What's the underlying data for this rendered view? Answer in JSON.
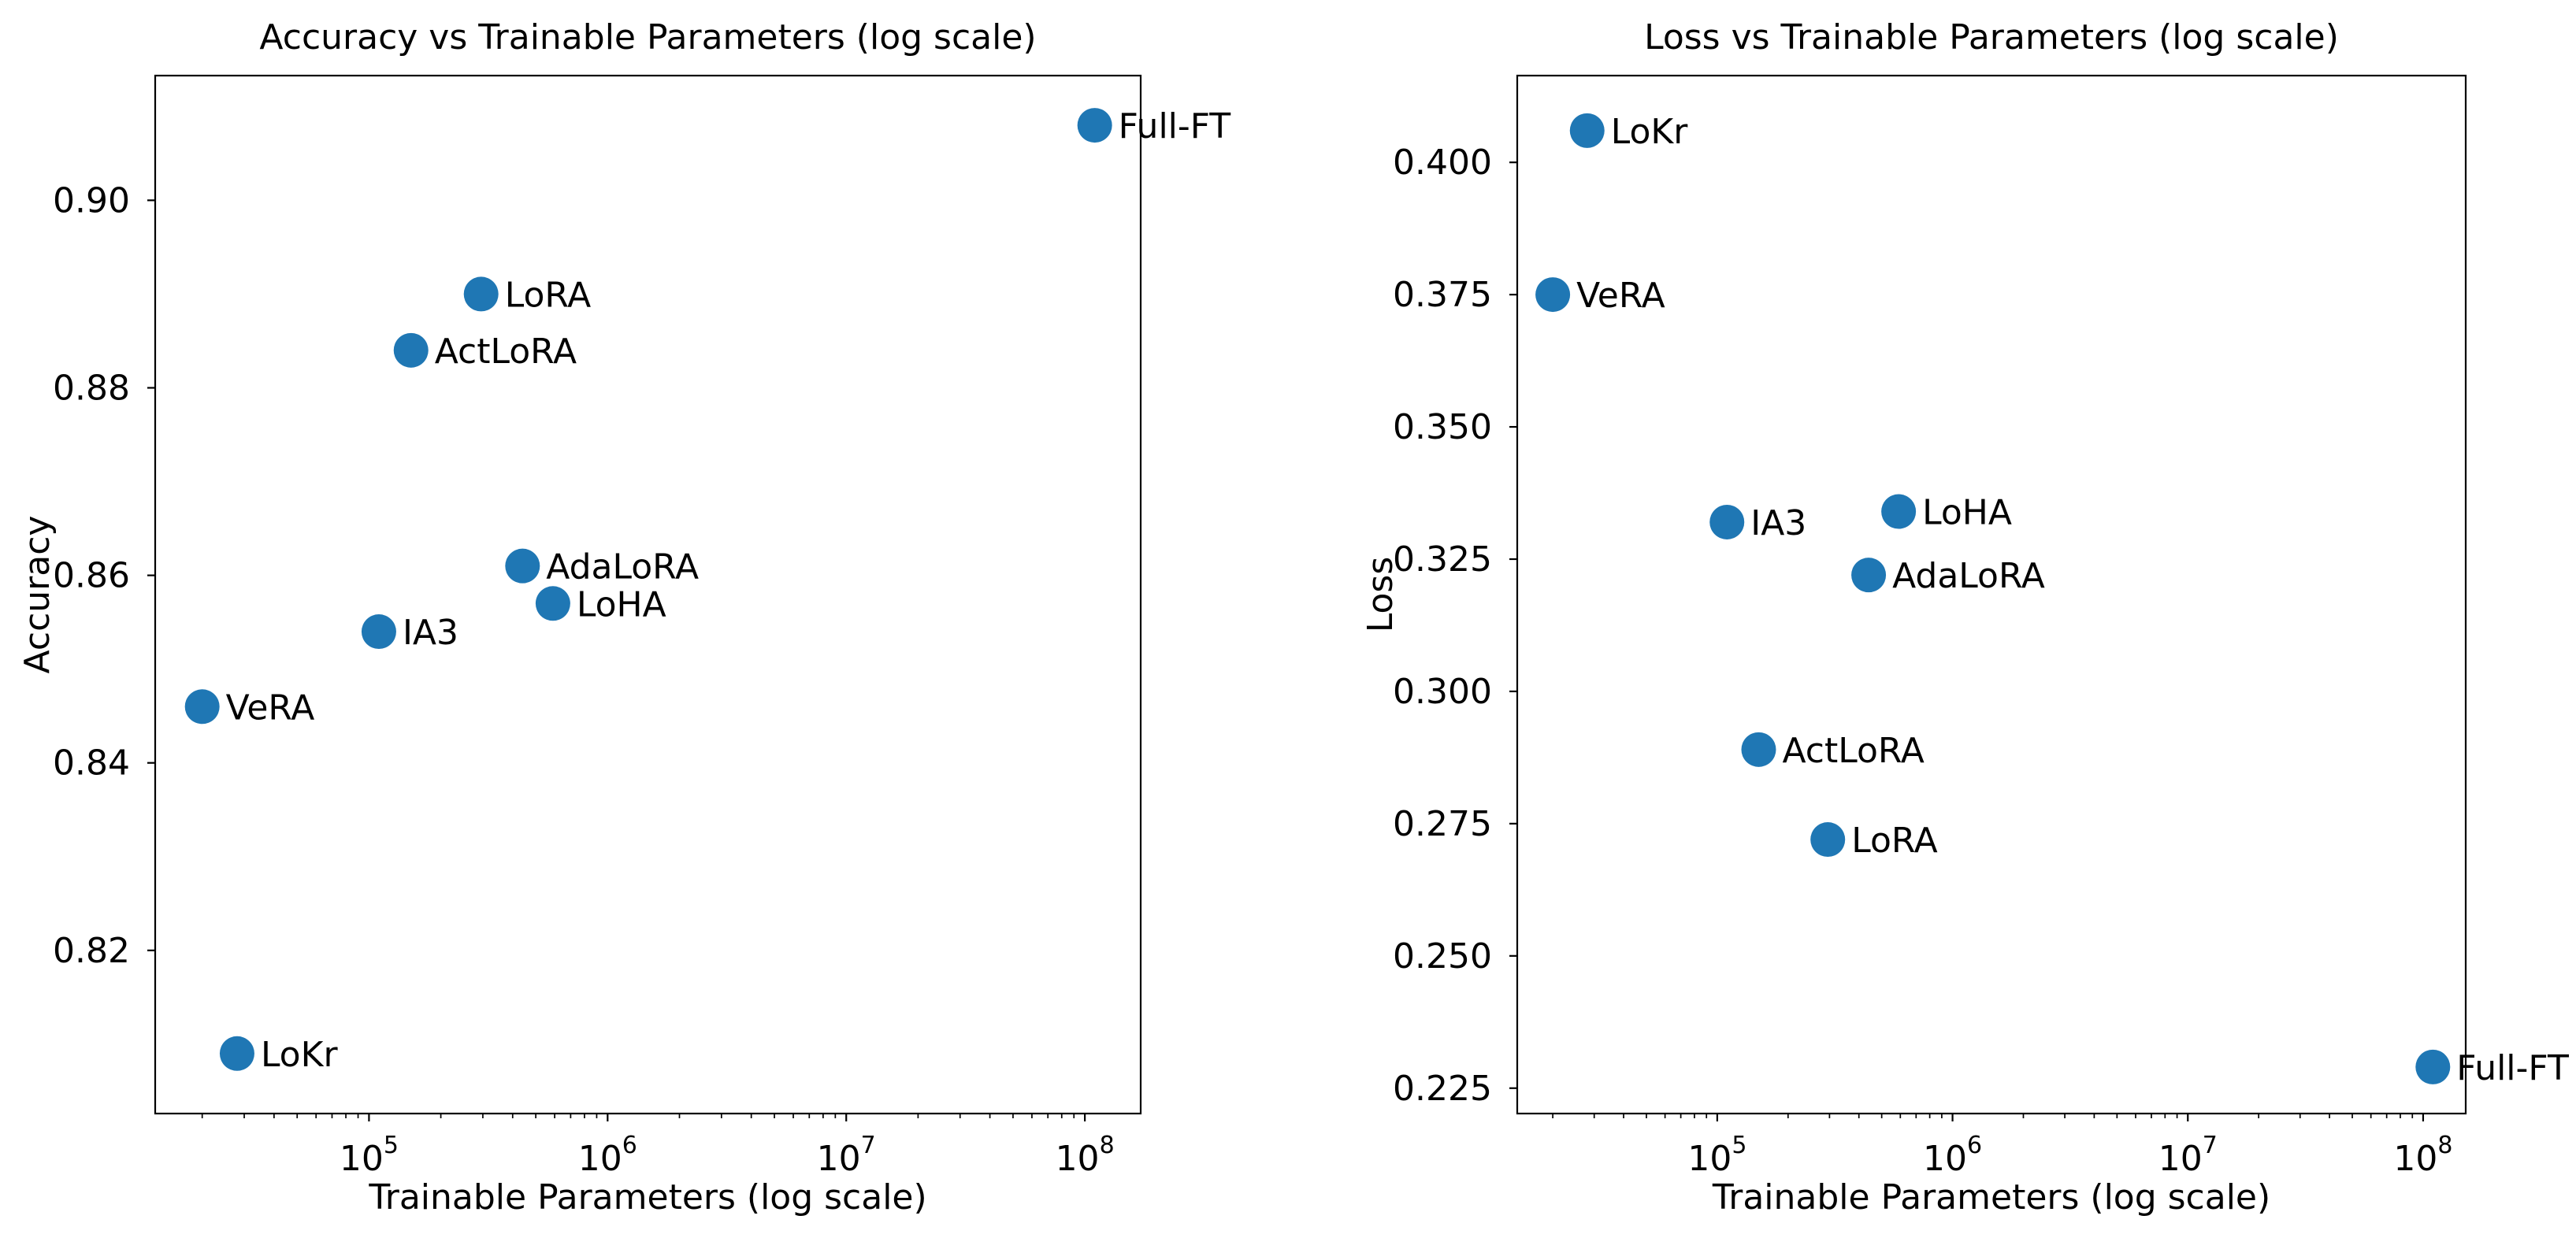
{
  "figure": {
    "background": "#ffffff",
    "text_color": "#000000",
    "marker_color": "#1f77b4"
  },
  "chart_data": [
    {
      "type": "scatter",
      "name": "accuracy-vs-params",
      "title": "Accuracy vs Trainable Parameters (log scale)",
      "xlabel": "Trainable Parameters (log scale)",
      "ylabel": "Accuracy",
      "x_scale": "log10",
      "grid": false,
      "legend": "none",
      "marker_color": "#1f77b4",
      "xlim_log10": [
        4.104,
        8.234
      ],
      "ylim": [
        0.8026,
        0.9133
      ],
      "xticks": [
        {
          "log10": 5,
          "base": "10",
          "exponent": "5"
        },
        {
          "log10": 6,
          "base": "10",
          "exponent": "6"
        },
        {
          "log10": 7,
          "base": "10",
          "exponent": "7"
        },
        {
          "log10": 8,
          "base": "10",
          "exponent": "8"
        }
      ],
      "yticks": [
        {
          "value": 0.82,
          "label": "0.82"
        },
        {
          "value": 0.84,
          "label": "0.84"
        },
        {
          "value": 0.86,
          "label": "0.86"
        },
        {
          "value": 0.88,
          "label": "0.88"
        },
        {
          "value": 0.9,
          "label": "0.90"
        }
      ],
      "points": [
        {
          "label": "Full-FT",
          "params": 110000000,
          "value": 0.908
        },
        {
          "label": "LoRA",
          "params": 295000,
          "value": 0.89
        },
        {
          "label": "ActLoRA",
          "params": 150000,
          "value": 0.884
        },
        {
          "label": "AdaLoRA",
          "params": 440000,
          "value": 0.861
        },
        {
          "label": "LoHA",
          "params": 590000,
          "value": 0.857
        },
        {
          "label": "IA3",
          "params": 110000,
          "value": 0.854
        },
        {
          "label": "VeRA",
          "params": 20000,
          "value": 0.846
        },
        {
          "label": "LoKr",
          "params": 28000,
          "value": 0.809
        }
      ]
    },
    {
      "type": "scatter",
      "name": "loss-vs-params",
      "title": "Loss vs Trainable Parameters (log scale)",
      "xlabel": "Trainable Parameters (log scale)",
      "ylabel": "Loss",
      "x_scale": "log10",
      "grid": false,
      "legend": "none",
      "marker_color": "#1f77b4",
      "xlim_log10": [
        4.15,
        8.181
      ],
      "ylim": [
        0.2202,
        0.4164
      ],
      "xticks": [
        {
          "log10": 5,
          "base": "10",
          "exponent": "5"
        },
        {
          "log10": 6,
          "base": "10",
          "exponent": "6"
        },
        {
          "log10": 7,
          "base": "10",
          "exponent": "7"
        },
        {
          "log10": 8,
          "base": "10",
          "exponent": "8"
        }
      ],
      "yticks": [
        {
          "value": 0.225,
          "label": "0.225"
        },
        {
          "value": 0.25,
          "label": "0.250"
        },
        {
          "value": 0.275,
          "label": "0.275"
        },
        {
          "value": 0.3,
          "label": "0.300"
        },
        {
          "value": 0.325,
          "label": "0.325"
        },
        {
          "value": 0.35,
          "label": "0.350"
        },
        {
          "value": 0.375,
          "label": "0.375"
        },
        {
          "value": 0.4,
          "label": "0.400"
        }
      ],
      "points": [
        {
          "label": "LoKr",
          "params": 28000,
          "value": 0.406
        },
        {
          "label": "VeRA",
          "params": 20000,
          "value": 0.375
        },
        {
          "label": "LoHA",
          "params": 590000,
          "value": 0.334
        },
        {
          "label": "IA3",
          "params": 110000,
          "value": 0.332
        },
        {
          "label": "AdaLoRA",
          "params": 440000,
          "value": 0.322
        },
        {
          "label": "ActLoRA",
          "params": 150000,
          "value": 0.289
        },
        {
          "label": "LoRA",
          "params": 295000,
          "value": 0.272
        },
        {
          "label": "Full-FT",
          "params": 110000000,
          "value": 0.229
        }
      ]
    }
  ]
}
